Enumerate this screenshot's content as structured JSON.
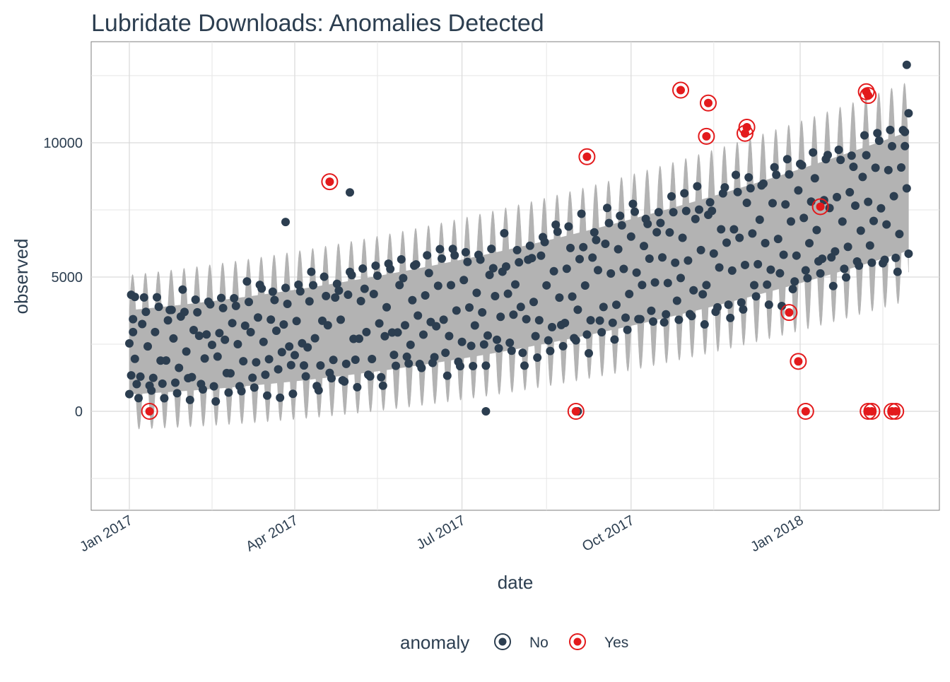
{
  "chart_data": {
    "type": "scatter",
    "title": "Lubridate Downloads: Anomalies Detected",
    "xlabel": "date",
    "ylabel": "observed",
    "x_ticks": [
      "Jan 2017",
      "Apr 2017",
      "Jul 2017",
      "Oct 2017",
      "Jan 2018"
    ],
    "y_ticks": [
      0,
      5000,
      10000
    ],
    "ylim": [
      -3600,
      14000
    ],
    "grid": true,
    "legend": {
      "title": "anomaly",
      "position": "bottom",
      "entries": [
        {
          "label": "No",
          "color": "#2c3e50"
        },
        {
          "label": "Yes",
          "color": "#e31a1c"
        }
      ]
    },
    "colors": {
      "normal": "#2c3e50",
      "anomaly": "#e31a1c",
      "band": "#b3b3b3",
      "text": "#2c3e50"
    },
    "band": {
      "description_free": true,
      "center_start": 2200,
      "center_end": 8200,
      "halfwidth_start": 2400,
      "halfwidth_end": 3400,
      "period_days": 7
    },
    "anomalies": [
      {
        "date": "2017-01-12",
        "value": 0
      },
      {
        "date": "2017-04-20",
        "value": 8550
      },
      {
        "date": "2017-09-01",
        "value": 0
      },
      {
        "date": "2017-09-07",
        "value": 9480
      },
      {
        "date": "2017-10-28",
        "value": 11960
      },
      {
        "date": "2017-11-11",
        "value": 10240
      },
      {
        "date": "2017-11-12",
        "value": 11480
      },
      {
        "date": "2017-12-02",
        "value": 10350
      },
      {
        "date": "2017-12-03",
        "value": 10580
      },
      {
        "date": "2017-12-26",
        "value": 3680
      },
      {
        "date": "2017-12-31",
        "value": 1860
      },
      {
        "date": "2018-01-04",
        "value": 0
      },
      {
        "date": "2018-01-12",
        "value": 7620
      },
      {
        "date": "2018-02-06",
        "value": 11900
      },
      {
        "date": "2018-02-07",
        "value": 11760
      },
      {
        "date": "2018-02-07",
        "value": 0
      },
      {
        "date": "2018-02-09",
        "value": 0
      },
      {
        "date": "2018-02-20",
        "value": 0
      },
      {
        "date": "2018-02-22",
        "value": 0
      }
    ],
    "normal_points_sample": [
      {
        "date": "2017-01-01",
        "value": 640
      },
      {
        "date": "2017-01-02",
        "value": 1340
      },
      {
        "date": "2017-01-03",
        "value": 2950
      },
      {
        "date": "2017-01-04",
        "value": 4260
      },
      {
        "date": "2017-03-27",
        "value": 7050
      },
      {
        "date": "2017-05-01",
        "value": 8150
      },
      {
        "date": "2017-07-14",
        "value": 0
      },
      {
        "date": "2017-09-02",
        "value": 0
      },
      {
        "date": "2018-02-28",
        "value": 12900
      },
      {
        "date": "2018-03-01",
        "value": 11100
      },
      {
        "date": "2018-02-27",
        "value": 10400
      }
    ]
  }
}
